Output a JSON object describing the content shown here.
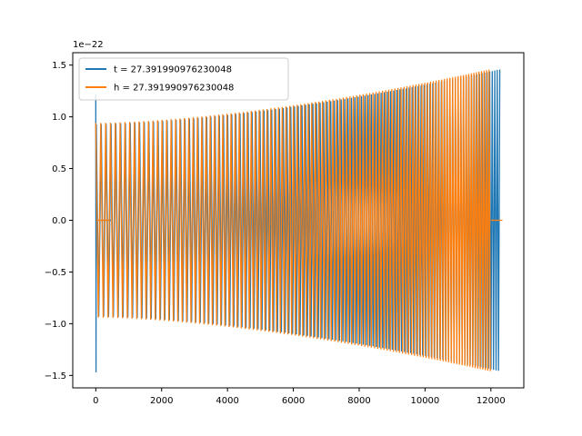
{
  "chart_data": {
    "type": "line",
    "title": "",
    "xlabel": "",
    "ylabel": "",
    "xlim": [
      -700,
      13000
    ],
    "ylim": [
      -1.62,
      1.62
    ],
    "offset_text": "1e−22",
    "grid": false,
    "legend_position": "upper-left",
    "x_ticks": [
      0,
      2000,
      4000,
      6000,
      8000,
      10000,
      12000
    ],
    "x_tick_labels": [
      "0",
      "2000",
      "4000",
      "6000",
      "8000",
      "10000",
      "12000"
    ],
    "y_ticks": [
      -1.5,
      -1.0,
      -0.5,
      0.0,
      0.5,
      1.0,
      1.5
    ],
    "y_tick_labels": [
      "−1.5",
      "−1.0",
      "−0.5",
      "0.0",
      "0.5",
      "1.0",
      "1.5"
    ],
    "series": [
      {
        "name": "t = 27.391990976230048",
        "color": "#1f77b4",
        "signal": {
          "x_start": 0,
          "x_end": 12300,
          "amplitude_start": 0.93,
          "amplitude_end": 1.46,
          "period_start": 150,
          "period_end": 75,
          "initial_spike": [
            1.22,
            -1.47
          ],
          "flat_segments": [
            [
              200,
              460,
              0.0
            ]
          ]
        }
      },
      {
        "name": "h = 27.391990976230048",
        "color": "#ff7f0e",
        "signal": {
          "x_start": 0,
          "x_end": 12000,
          "amplitude_start": 0.94,
          "amplitude_end": 1.46,
          "period_start": 150,
          "period_end": 75,
          "flat_segments": [
            [
              60,
              420,
              0.0
            ],
            [
              12000,
              12350,
              0.0
            ]
          ]
        }
      }
    ]
  }
}
